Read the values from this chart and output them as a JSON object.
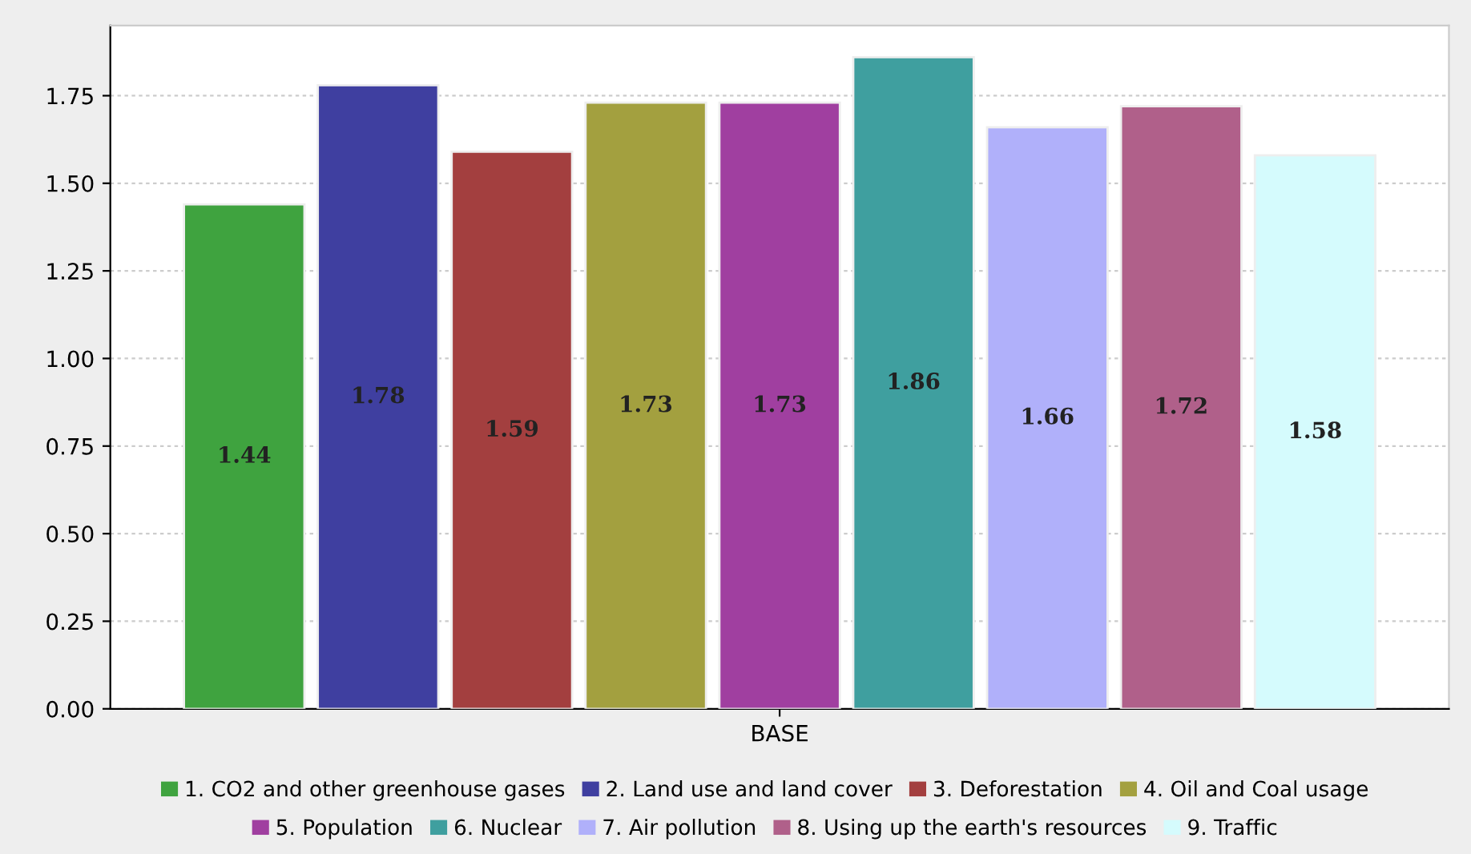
{
  "chart_data": {
    "type": "bar",
    "categories": [
      "BASE"
    ],
    "series": [
      {
        "name": "1. CO2 and other greenhouse gases",
        "color": "#3fa33f",
        "values": [
          1.44
        ]
      },
      {
        "name": "2. Land use and land cover",
        "color": "#3f3fa0",
        "values": [
          1.78
        ]
      },
      {
        "name": "3. Deforestation",
        "color": "#a33f3f",
        "values": [
          1.59
        ]
      },
      {
        "name": "4. Oil and Coal usage",
        "color": "#a3a03f",
        "values": [
          1.73
        ]
      },
      {
        "name": "5. Population",
        "color": "#a03fa0",
        "values": [
          1.73
        ]
      },
      {
        "name": "6. Nuclear",
        "color": "#3f9f9f",
        "values": [
          1.86
        ]
      },
      {
        "name": "7. Air pollution",
        "color": "#b0b0fa",
        "values": [
          1.66
        ]
      },
      {
        "name": "8. Using up the earth's resources",
        "color": "#b0608a",
        "values": [
          1.72
        ]
      },
      {
        "name": "9. Traffic",
        "color": "#d5fbfd",
        "values": [
          1.58
        ]
      }
    ],
    "ylim": [
      0,
      1.95
    ],
    "yticks": [
      {
        "value": 0,
        "label": "0.00"
      },
      0.25,
      {
        "value": 0.5,
        "label": "0.50"
      },
      0.75,
      {
        "value": 1,
        "label": "1.00"
      },
      1.25,
      {
        "value": 1.5,
        "label": "1.50"
      },
      1.75
    ],
    "grid": "y",
    "legend": "bottom",
    "data_labels": true
  }
}
